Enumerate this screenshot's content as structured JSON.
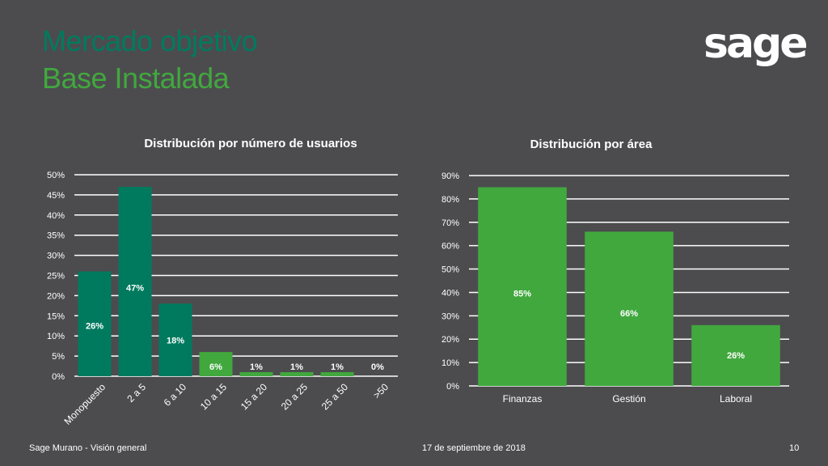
{
  "header": {
    "title_line1": "Mercado objetivo",
    "title_line2": "Base Instalada",
    "logo_text": "sage"
  },
  "footer": {
    "left": "Sage Murano - Visión general",
    "center": "17 de septiembre de 2018",
    "page": "10"
  },
  "colors": {
    "background": "#4c4c4f",
    "dark_green": "#007a5e",
    "green": "#41a83e",
    "text": "#ffffff"
  },
  "chart_data": [
    {
      "type": "bar",
      "title": "Distribución por número de usuarios",
      "categories": [
        "Monopuesto",
        "2 a 5",
        "6 a 10",
        "10 a 15",
        "15 a 20",
        "20 a 25",
        "25 a 50",
        ">50"
      ],
      "values": [
        26,
        47,
        18,
        6,
        1,
        1,
        1,
        0
      ],
      "data_labels": [
        "26%",
        "47%",
        "18%",
        "6%",
        "1%",
        "1%",
        "1%",
        "0%"
      ],
      "bar_colors": [
        "#007a5e",
        "#007a5e",
        "#007a5e",
        "#41a83e",
        "#41a83e",
        "#41a83e",
        "#41a83e",
        "#41a83e"
      ],
      "yticks": [
        "0%",
        "5%",
        "10%",
        "15%",
        "20%",
        "25%",
        "30%",
        "35%",
        "40%",
        "45%",
        "50%"
      ],
      "ylim": [
        0,
        50
      ],
      "grid": true
    },
    {
      "type": "bar",
      "title": "Distribución por área",
      "categories": [
        "Finanzas",
        "Gestión",
        "Laboral"
      ],
      "values": [
        85,
        66,
        26
      ],
      "data_labels": [
        "85%",
        "66%",
        "26%"
      ],
      "bar_colors": [
        "#41a83e",
        "#41a83e",
        "#41a83e"
      ],
      "yticks": [
        "0%",
        "10%",
        "20%",
        "30%",
        "40%",
        "50%",
        "60%",
        "70%",
        "80%",
        "90%"
      ],
      "ylim": [
        0,
        90
      ],
      "grid": true
    }
  ]
}
